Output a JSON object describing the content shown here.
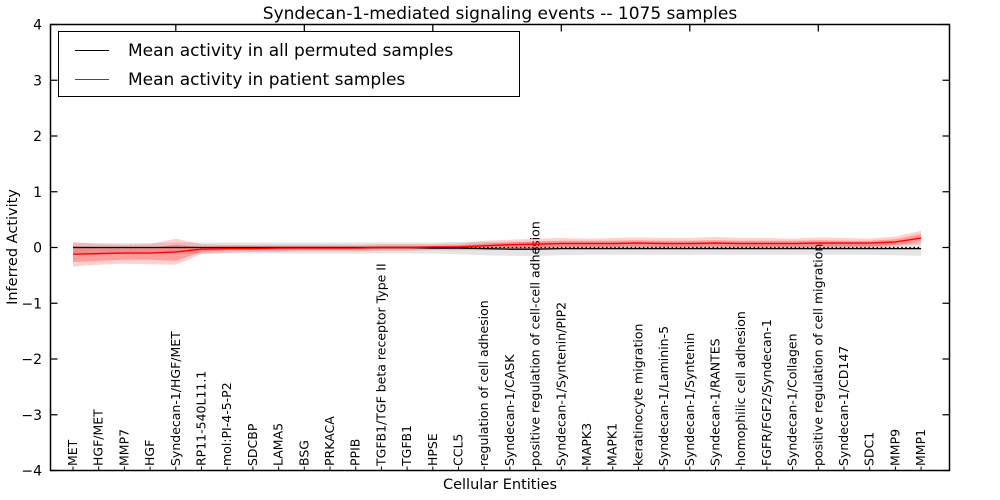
{
  "chart_data": {
    "type": "line",
    "title": "Syndecan-1-mediated signaling events -- 1075 samples",
    "xlabel": "Cellular Entities",
    "ylabel": "Inferred Activity",
    "ylim": [
      -4,
      4
    ],
    "grid": false,
    "yticks": [
      {
        "value": 4,
        "label": "4"
      },
      {
        "value": 3,
        "label": "3"
      },
      {
        "value": 2,
        "label": "2"
      },
      {
        "value": 1,
        "label": "1"
      },
      {
        "value": 0,
        "label": "0"
      },
      {
        "value": -1,
        "label": "−1"
      },
      {
        "value": -2,
        "label": "−2"
      },
      {
        "value": -3,
        "label": "−3"
      },
      {
        "value": -4,
        "label": "−4"
      }
    ],
    "x_major_tick_indices": [
      4,
      9,
      14,
      19,
      24,
      29
    ],
    "categories": [
      "MET",
      "HGF/MET",
      "MMP7",
      "HGF",
      "Syndecan-1/HGF/MET",
      "RP11-540L11.1",
      "mol:PI-4-5-P2",
      "SDCBP",
      "LAMA5",
      "BSG",
      "PRKACA",
      "PPIB",
      "TGFB1/TGF beta receptor Type II",
      "TGFB1",
      "HPSE",
      "CCL5",
      "regulation of cell adhesion",
      "Syndecan-1/CASK",
      "positive regulation of cell-cell adhesion",
      "Syndecan-1/Syntenin/PIP2",
      "MAPK3",
      "MAPK1",
      "keratinocyte migration",
      "Syndecan-1/Laminin-5",
      "Syndecan-1/Syntenin",
      "Syndecan-1/RANTES",
      "homophilic cell adhesion",
      "FGFR/FGF2/Syndecan-1",
      "Syndecan-1/Collagen",
      "positive regulation of cell migration",
      "Syndecan-1/CD147",
      "SDC1",
      "MMP9",
      "MMP1"
    ],
    "series": [
      {
        "name": "Mean activity in all permuted samples",
        "color": "#000000",
        "values": [
          0,
          0,
          0,
          0,
          0,
          0,
          0,
          0,
          0,
          0,
          0,
          0,
          0,
          0,
          -0.01,
          -0.01,
          -0.02,
          -0.03,
          -0.03,
          -0.02,
          -0.02,
          -0.02,
          -0.02,
          -0.02,
          -0.02,
          -0.02,
          -0.02,
          -0.02,
          -0.02,
          -0.02,
          -0.02,
          -0.02,
          -0.02,
          -0.02
        ]
      },
      {
        "name": "Mean activity in patient samples",
        "color": "#ff0000",
        "values": [
          -0.12,
          -0.11,
          -0.1,
          -0.1,
          -0.08,
          -0.03,
          -0.02,
          -0.02,
          -0.01,
          -0.01,
          -0.01,
          -0.01,
          0,
          0,
          0.01,
          0.01,
          0.03,
          0.05,
          0.06,
          0.07,
          0.07,
          0.07,
          0.08,
          0.07,
          0.07,
          0.08,
          0.07,
          0.07,
          0.07,
          0.08,
          0.08,
          0.08,
          0.1,
          0.17
        ]
      }
    ],
    "bands": [
      {
        "name": "permuted-sample-range",
        "color": "rgba(0,0,0,0.10)",
        "top": [
          0.08,
          0.08,
          0.08,
          0.08,
          0.09,
          0.09,
          0.09,
          0.09,
          0.09,
          0.09,
          0.09,
          0.09,
          0.09,
          0.09,
          0.09,
          0.1,
          0.1,
          0.1,
          0.1,
          0.1,
          0.1,
          0.1,
          0.1,
          0.1,
          0.1,
          0.1,
          0.1,
          0.1,
          0.1,
          0.1,
          0.1,
          0.09,
          0.09,
          0.09
        ],
        "bottom": [
          -0.1,
          -0.1,
          -0.1,
          -0.1,
          -0.11,
          -0.11,
          -0.11,
          -0.11,
          -0.11,
          -0.11,
          -0.11,
          -0.11,
          -0.11,
          -0.11,
          -0.11,
          -0.12,
          -0.14,
          -0.15,
          -0.15,
          -0.14,
          -0.13,
          -0.13,
          -0.13,
          -0.13,
          -0.13,
          -0.13,
          -0.13,
          -0.13,
          -0.13,
          -0.13,
          -0.13,
          -0.13,
          -0.14,
          -0.15
        ]
      },
      {
        "name": "patient-sample-range-outer",
        "color": "rgba(255,0,0,0.18)",
        "top": [
          0.1,
          0.06,
          0.05,
          0.06,
          0.16,
          0.06,
          0.05,
          0.05,
          0.05,
          0.05,
          0.05,
          0.05,
          0.06,
          0.06,
          0.06,
          0.07,
          0.12,
          0.14,
          0.16,
          0.17,
          0.16,
          0.17,
          0.18,
          0.17,
          0.17,
          0.19,
          0.17,
          0.17,
          0.16,
          0.18,
          0.17,
          0.16,
          0.2,
          0.3
        ],
        "bottom": [
          -0.34,
          -0.31,
          -0.29,
          -0.3,
          -0.31,
          -0.12,
          -0.09,
          -0.08,
          -0.08,
          -0.07,
          -0.07,
          -0.07,
          -0.06,
          -0.06,
          -0.05,
          -0.05,
          -0.05,
          -0.04,
          -0.04,
          -0.03,
          -0.03,
          -0.03,
          -0.02,
          -0.02,
          -0.02,
          -0.02,
          -0.02,
          -0.02,
          -0.02,
          -0.01,
          0.0,
          0.0,
          0.02,
          0.06
        ]
      },
      {
        "name": "patient-sample-range-inner",
        "color": "rgba(255,0,0,0.25)",
        "top": [
          0.02,
          0.0,
          -0.01,
          -0.01,
          0.05,
          0.01,
          0.02,
          0.02,
          0.02,
          0.02,
          0.02,
          0.02,
          0.03,
          0.03,
          0.03,
          0.04,
          0.07,
          0.09,
          0.11,
          0.12,
          0.12,
          0.12,
          0.13,
          0.12,
          0.12,
          0.13,
          0.12,
          0.12,
          0.12,
          0.13,
          0.12,
          0.12,
          0.15,
          0.24
        ],
        "bottom": [
          -0.26,
          -0.24,
          -0.22,
          -0.22,
          -0.24,
          -0.08,
          -0.05,
          -0.05,
          -0.05,
          -0.04,
          -0.04,
          -0.04,
          -0.03,
          -0.03,
          -0.03,
          -0.02,
          -0.02,
          -0.01,
          0.0,
          0.01,
          0.01,
          0.01,
          0.02,
          0.01,
          0.01,
          0.02,
          0.01,
          0.01,
          0.01,
          0.02,
          0.02,
          0.02,
          0.05,
          0.1
        ]
      }
    ],
    "zero_line": {
      "y": 0,
      "style": "dotted",
      "color": "#000000"
    },
    "legend": {
      "position": "upper-left",
      "items": [
        {
          "label": "Mean activity in all permuted samples",
          "color": "#000000"
        },
        {
          "label": "Mean activity in patient samples",
          "color": "#ff0000"
        }
      ]
    }
  }
}
